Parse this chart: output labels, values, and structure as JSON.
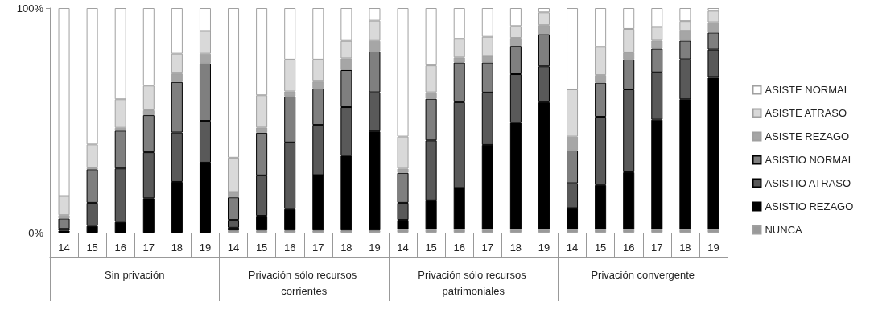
{
  "chart_data": {
    "type": "bar",
    "stacked": true,
    "categories": [
      "14",
      "15",
      "16",
      "17",
      "18",
      "19",
      "14",
      "15",
      "16",
      "17",
      "18",
      "19",
      "14",
      "15",
      "16",
      "17",
      "18",
      "19",
      "14",
      "15",
      "16",
      "17",
      "18",
      "19"
    ],
    "annotations": [
      "Sin privación",
      "Privación sólo recursos corrientes",
      "Privación sólo recursos patrimoniales",
      "Privación convergente"
    ],
    "ylim": [
      0,
      100
    ],
    "yticks": [
      {
        "value": 0,
        "label": "0%"
      },
      {
        "value": 100,
        "label": "100%"
      }
    ],
    "grid": false,
    "legend": "right",
    "series": [
      {
        "name": "NUNCA",
        "color": "#999999",
        "values": [
          0,
          0,
          0,
          0,
          0,
          0,
          1,
          1,
          1,
          1,
          1,
          1,
          1.5,
          1.5,
          1.5,
          1.5,
          1.5,
          1.5,
          1.5,
          1.5,
          1.5,
          1.5,
          1.5,
          1.5
        ]
      },
      {
        "name": "ASISTIO REZAGO",
        "color": "#000000",
        "values": [
          0.9,
          3.0,
          4.8,
          15.3,
          22.6,
          31.2,
          1.2,
          6.5,
          9.5,
          24.6,
          33.3,
          44.1,
          4.2,
          12.9,
          18.4,
          37.6,
          47.5,
          56.6,
          9.4,
          19.7,
          25.4,
          48.8,
          57.9,
          67.5
        ]
      },
      {
        "name": "ASISTIO ATRASO",
        "color": "#595959",
        "values": [
          0.8,
          10.3,
          23.8,
          20.5,
          22.0,
          18.6,
          3.5,
          18.0,
          29.7,
          22.4,
          21.6,
          17.4,
          7.6,
          26.7,
          38.2,
          23.3,
          21.6,
          16.0,
          11.1,
          30.4,
          36.9,
          21.1,
          17.8,
          12.5
        ]
      },
      {
        "name": "ASISTIO NORMAL",
        "color": "#7f7f7f",
        "values": [
          4.6,
          14.9,
          16.8,
          16.5,
          22.5,
          25.6,
          10.0,
          19.0,
          20.5,
          16.2,
          16.5,
          18.2,
          13.3,
          18.5,
          17.7,
          13.4,
          12.5,
          14.3,
          14.6,
          15.2,
          13.3,
          10.5,
          8.3,
          7.6
        ]
      },
      {
        "name": "ASISTE REZAGO",
        "color": "#a6a6a6",
        "values": [
          1.5,
          0.8,
          1.3,
          2.2,
          3.8,
          4.3,
          2.4,
          2.3,
          2.2,
          3.1,
          5.2,
          4.7,
          1.9,
          2.9,
          2.2,
          2.9,
          3.6,
          4.0,
          6.2,
          3.4,
          3.2,
          3.6,
          4.4,
          4.6
        ]
      },
      {
        "name": "ASISTE ATRASO",
        "color": "#d9d9d9",
        "values": [
          8.5,
          10.3,
          12.7,
          11.0,
          8.8,
          10.1,
          15.3,
          14.4,
          14.2,
          9.8,
          7.8,
          9.0,
          14.3,
          12.0,
          8.3,
          8.5,
          5.3,
          5.7,
          21.0,
          12.5,
          10.4,
          6.1,
          4.3,
          5.1
        ]
      },
      {
        "name": "ASISTE NORMAL",
        "color": "#ffffff",
        "values": [
          83.7,
          60.7,
          40.6,
          34.5,
          20.3,
          10.2,
          66.6,
          38.8,
          22.9,
          22.9,
          14.6,
          5.6,
          57.2,
          25.5,
          13.7,
          12.8,
          8.0,
          1.9,
          36.2,
          17.3,
          9.3,
          8.4,
          5.8,
          1.2
        ]
      }
    ]
  }
}
